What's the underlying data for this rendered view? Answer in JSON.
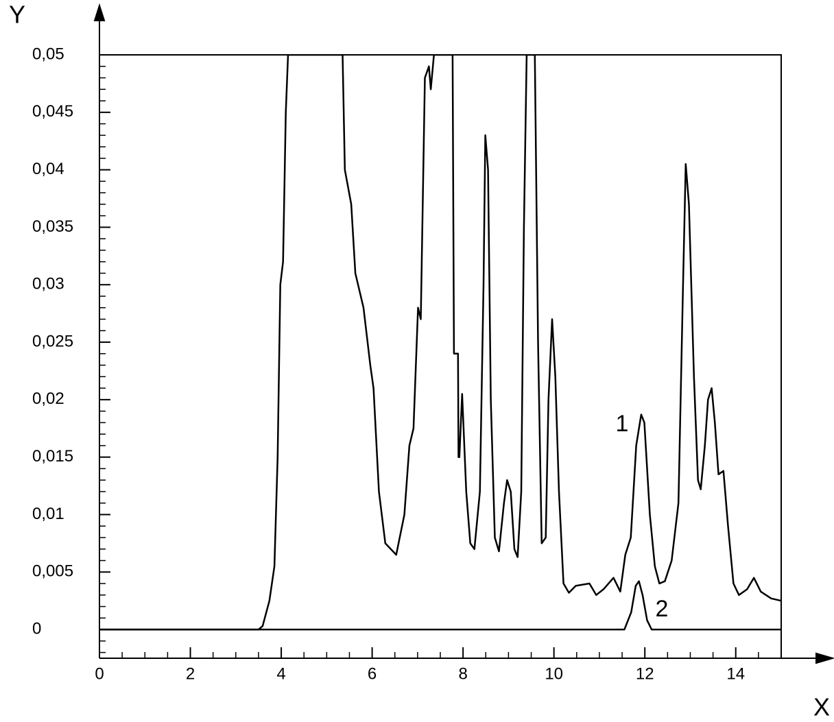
{
  "chart_data": {
    "type": "line",
    "x_label": "X",
    "y_label": "Y",
    "annotations": [
      "1",
      "2"
    ],
    "xlim": [
      0,
      15
    ],
    "ylim": [
      -0.0025,
      0.05
    ],
    "xticks": [
      0,
      2,
      4,
      6,
      8,
      10,
      12,
      14
    ],
    "yticks": [
      0,
      {
        "value": 0.005,
        "label": "0,005"
      },
      {
        "value": 0.01,
        "label": "0,01"
      },
      {
        "value": 0.015,
        "label": "0,015"
      },
      {
        "value": 0.02,
        "label": "0,02"
      },
      {
        "value": 0.025,
        "label": "0,025"
      },
      {
        "value": 0.03,
        "label": "0,03"
      },
      {
        "value": 0.035,
        "label": "0,035"
      },
      {
        "value": 0.04,
        "label": "0,04"
      },
      {
        "value": 0.045,
        "label": "0,045"
      },
      {
        "value": 0.05,
        "label": "0,05"
      }
    ],
    "grid": false,
    "series": [
      {
        "color": "#000000",
        "x": [
          0,
          3.5,
          3.59,
          3.74,
          3.85,
          3.92,
          3.98,
          4.04,
          4.1,
          4.15,
          5.35,
          5.4,
          5.54,
          5.63,
          5.81,
          5.96,
          6.03,
          6.15,
          6.29,
          6.53,
          6.71,
          6.82,
          6.91,
          7.01,
          7.07,
          7.16,
          7.25,
          7.29,
          7.36,
          7.77,
          7.8,
          7.89,
          7.9,
          7.92,
          7.98,
          8.07,
          8.16,
          8.25,
          8.37,
          8.45,
          8.49,
          8.55,
          8.61,
          8.7,
          8.79,
          8.9,
          8.97,
          9.05,
          9.13,
          9.2,
          9.28,
          9.34,
          9.4,
          9.58,
          9.65,
          9.73,
          9.82,
          9.88,
          9.96,
          10.03,
          10.11,
          10.21,
          10.33,
          10.48,
          10.78,
          10.93,
          11.09,
          11.31,
          11.46,
          11.57,
          11.69,
          11.81,
          11.92,
          11.99,
          12.11,
          12.22,
          12.32,
          12.44,
          12.59,
          12.74,
          12.84,
          12.9,
          12.97,
          13.08,
          13.17,
          13.23,
          13.32,
          13.39,
          13.47,
          13.54,
          13.62,
          13.73,
          13.83,
          13.95,
          14.07,
          14.25,
          14.4,
          14.55,
          14.78,
          15
        ],
        "values": [
          0,
          0,
          0.0003,
          0.0025,
          0.0055,
          0.015,
          0.03,
          0.032,
          0.045,
          0.05,
          0.05,
          0.04,
          0.037,
          0.031,
          0.028,
          0.023,
          0.021,
          0.012,
          0.0075,
          0.0065,
          0.01,
          0.016,
          0.0175,
          0.028,
          0.027,
          0.048,
          0.049,
          0.047,
          0.05,
          0.05,
          0.024,
          0.024,
          0.015,
          0.015,
          0.0205,
          0.012,
          0.0075,
          0.007,
          0.012,
          0.03,
          0.043,
          0.04,
          0.02,
          0.008,
          0.0068,
          0.011,
          0.013,
          0.012,
          0.007,
          0.0063,
          0.012,
          0.035,
          0.05,
          0.05,
          0.025,
          0.0075,
          0.008,
          0.02,
          0.027,
          0.022,
          0.012,
          0.004,
          0.0032,
          0.0038,
          0.004,
          0.003,
          0.0035,
          0.0045,
          0.0033,
          0.0065,
          0.008,
          0.016,
          0.0187,
          0.018,
          0.01,
          0.0055,
          0.004,
          0.0042,
          0.006,
          0.011,
          0.03,
          0.0405,
          0.037,
          0.022,
          0.013,
          0.0122,
          0.016,
          0.02,
          0.021,
          0.018,
          0.0135,
          0.0138,
          0.009,
          0.004,
          0.003,
          0.0035,
          0.0045,
          0.0033,
          0.0027,
          0.0025
        ]
      },
      {
        "color": "#000000",
        "x": [
          0,
          11.55,
          11.7,
          11.8,
          11.87,
          11.95,
          12.05,
          12.15,
          15
        ],
        "values": [
          0,
          0,
          0.0015,
          0.0038,
          0.0042,
          0.003,
          0.0008,
          0,
          0
        ]
      }
    ]
  }
}
